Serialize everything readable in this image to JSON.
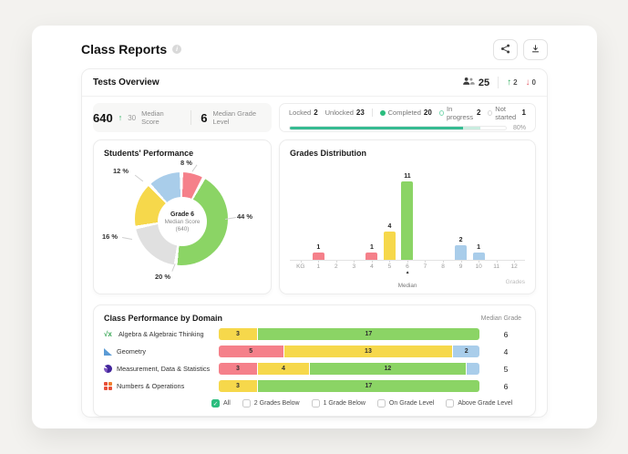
{
  "header": {
    "title": "Class Reports"
  },
  "overview": {
    "title": "Tests Overview",
    "students_total": "25",
    "moved_up": "2",
    "moved_down": "0",
    "median_score": {
      "value": "640",
      "delta": "30",
      "label": "Median Score"
    },
    "median_grade": {
      "value": "6",
      "label": "Median Grade Level"
    },
    "status": {
      "items": [
        {
          "label": "Locked",
          "value": "2",
          "dot": "none"
        },
        {
          "label": "Unlocked",
          "value": "23",
          "dot": "none"
        },
        {
          "label": "Completed",
          "value": "20",
          "dot": "filled",
          "divider_before": true
        },
        {
          "label": "In progress",
          "value": "2",
          "dot": "ring-green"
        },
        {
          "label": "Not started",
          "value": "1",
          "dot": "ring-gray"
        }
      ],
      "progress_label": "80%",
      "progress_main_pct": 80,
      "progress_light_pct": 8
    }
  },
  "chart_data": [
    {
      "type": "pie",
      "title": "Students' Performance",
      "center": [
        "Grade 6",
        "Median Score",
        "(640)"
      ],
      "slices": [
        {
          "label": "8 %",
          "value": 8,
          "color": "#f5808a"
        },
        {
          "label": "44 %",
          "value": 44,
          "color": "#8bd465"
        },
        {
          "label": "20 %",
          "value": 20,
          "color": "#e0e0e0"
        },
        {
          "label": "16 %",
          "value": 16,
          "color": "#f6d84b"
        },
        {
          "label": "12 %",
          "value": 12,
          "color": "#a9cdea"
        }
      ]
    },
    {
      "type": "bar",
      "title": "Grades Distribution",
      "categories": [
        "KG",
        "1",
        "2",
        "3",
        "4",
        "5",
        "6",
        "7",
        "8",
        "9",
        "10",
        "11",
        "12"
      ],
      "values": [
        0,
        1,
        0,
        0,
        1,
        4,
        11,
        0,
        0,
        2,
        1,
        0,
        0
      ],
      "bar_colors": [
        "",
        "#f5808a",
        "",
        "",
        "#f5808a",
        "#f6d84b",
        "#8bd465",
        "",
        "",
        "#a9cdea",
        "#a9cdea",
        "",
        ""
      ],
      "ylim": [
        0,
        11
      ],
      "xlabel": "Grades",
      "marker": {
        "category": "6",
        "label": "Median"
      }
    },
    {
      "type": "stacked-bar",
      "title": "Class Performance by Domain",
      "value_header": "Median Grade",
      "rows": [
        {
          "icon": "sqrt-icon",
          "label": "Algebra & Algebraic Thinking",
          "median": "6",
          "segments": [
            {
              "value": "3",
              "w": 3,
              "color": "#f6d84b"
            },
            {
              "value": "17",
              "w": 17,
              "color": "#8bd465"
            }
          ]
        },
        {
          "icon": "geometry-icon",
          "label": "Geometry",
          "median": "4",
          "segments": [
            {
              "value": "5",
              "w": 5,
              "color": "#f5808a"
            },
            {
              "value": "13",
              "w": 13,
              "color": "#f6d84b"
            },
            {
              "value": "2",
              "w": 2,
              "color": "#a9cdea"
            }
          ]
        },
        {
          "icon": "pie-chart-icon",
          "label": "Measurement, Data & Statistics",
          "median": "5",
          "segments": [
            {
              "value": "3",
              "w": 3,
              "color": "#f5808a"
            },
            {
              "value": "4",
              "w": 4,
              "color": "#f6d84b"
            },
            {
              "value": "12",
              "w": 12,
              "color": "#8bd465"
            },
            {
              "value": "",
              "w": 1,
              "color": "#a9cdea"
            }
          ]
        },
        {
          "icon": "grid-icon",
          "label": "Numbers & Operations",
          "median": "6",
          "segments": [
            {
              "value": "3",
              "w": 3,
              "color": "#f6d84b"
            },
            {
              "value": "17",
              "w": 17,
              "color": "#8bd465"
            }
          ]
        }
      ],
      "legend": [
        {
          "label": "All",
          "checked": true
        },
        {
          "label": "2 Grades Below",
          "checked": false
        },
        {
          "label": "1 Grade Below",
          "checked": false
        },
        {
          "label": "On Grade Level",
          "checked": false
        },
        {
          "label": "Above Grade Level",
          "checked": false
        }
      ]
    }
  ],
  "colors": {
    "accent_green": "#2bbd7e",
    "up_arrow": "#2fae5f",
    "down_arrow": "#e5606a",
    "progress": "#35bb91",
    "progress_light": "#c9ecdf"
  }
}
